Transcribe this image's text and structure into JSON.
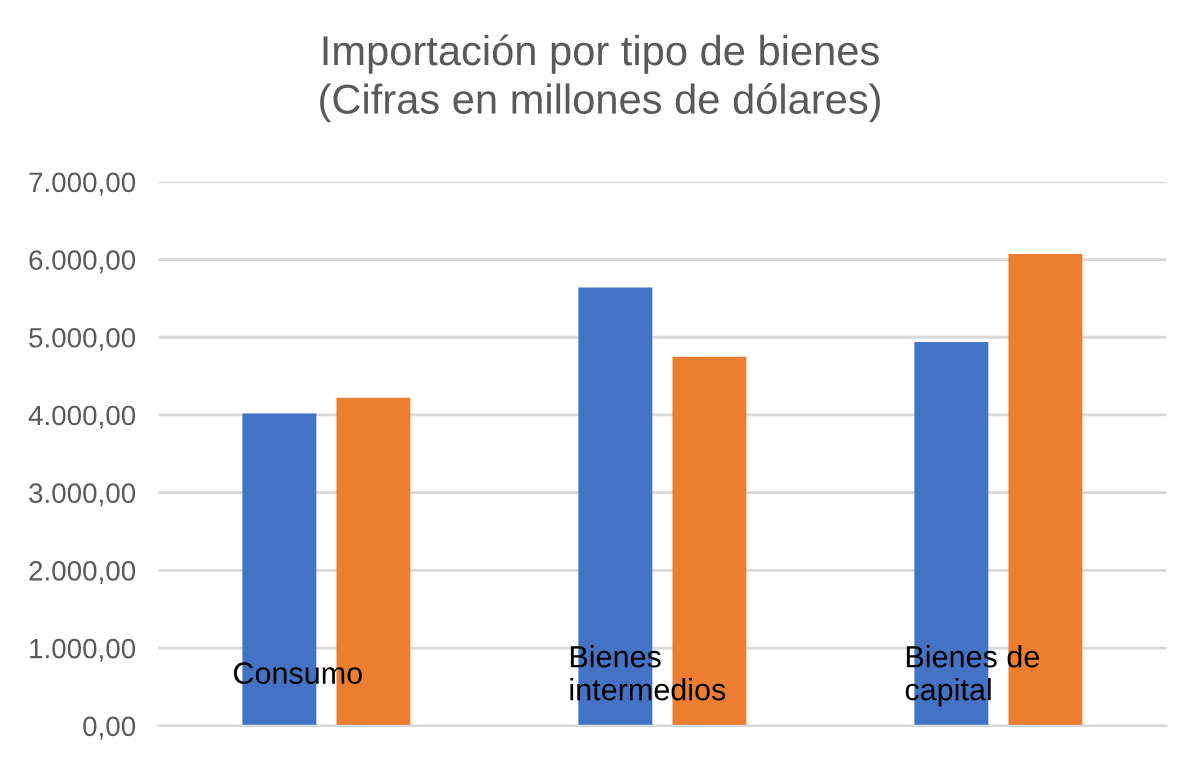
{
  "chart_data": {
    "type": "bar",
    "title": "Importación por tipo de bienes\n(Cifras en millones de dólares)",
    "categories": [
      "Consumo",
      "Bienes intermedios",
      "Bienes de capital"
    ],
    "series": [
      {
        "color": "#4472c4",
        "values": [
          4020,
          5640,
          4940
        ]
      },
      {
        "color": "#ed7d31",
        "values": [
          4220,
          4750,
          6070
        ]
      }
    ],
    "ylim": [
      0,
      7000
    ],
    "yticks": [
      {
        "value": 0,
        "label": "0,00"
      },
      {
        "value": 1000,
        "label": "1.000,00"
      },
      {
        "value": 2000,
        "label": "2.000,00"
      },
      {
        "value": 3000,
        "label": "3.000,00"
      },
      {
        "value": 4000,
        "label": "4.000,00"
      },
      {
        "value": 5000,
        "label": "5.000,00"
      },
      {
        "value": 6000,
        "label": "6.000,00"
      },
      {
        "value": 7000,
        "label": "7.000,00"
      }
    ],
    "grid": "y"
  }
}
